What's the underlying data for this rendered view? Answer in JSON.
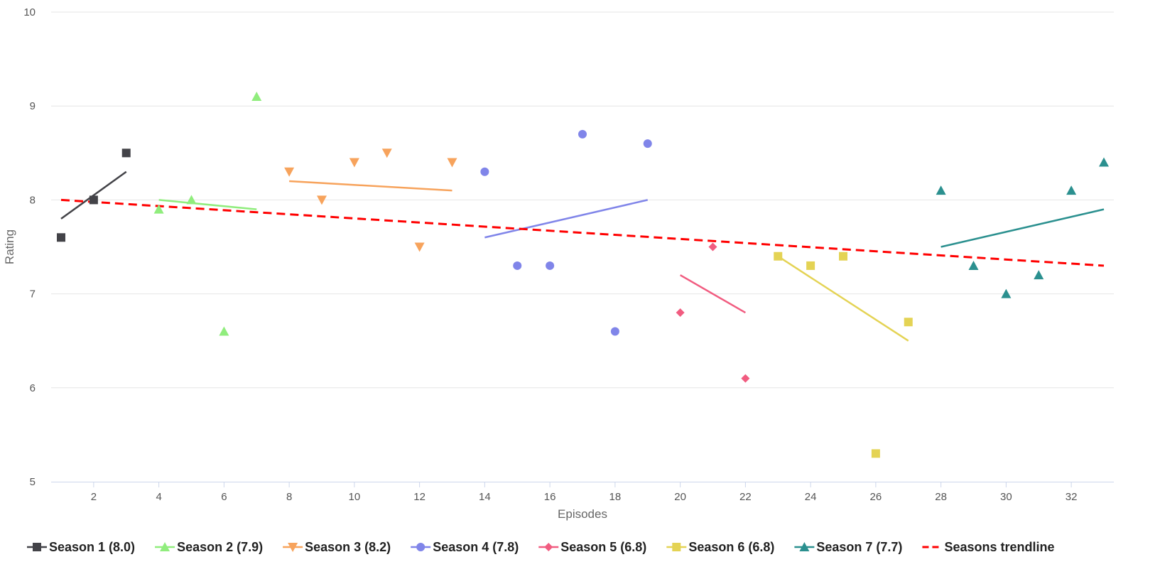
{
  "chart_data": {
    "type": "scatter",
    "xlabel": "Episodes",
    "ylabel": "Rating",
    "xlim": [
      0.5,
      33
    ],
    "ylim": [
      5,
      10
    ],
    "xticks": [
      2,
      4,
      6,
      8,
      10,
      12,
      14,
      16,
      18,
      20,
      22,
      24,
      26,
      28,
      30,
      32
    ],
    "yticks": [
      5,
      6,
      7,
      8,
      9,
      10
    ],
    "grid": "horizontal",
    "legend_position": "bottom",
    "series": [
      {
        "name": "Season 1 (8.0)",
        "color": "#434348",
        "marker": "square",
        "points": [
          [
            1,
            7.6
          ],
          [
            2,
            8.0
          ],
          [
            3,
            8.5
          ]
        ],
        "trend": [
          [
            1,
            7.8
          ],
          [
            3,
            8.3
          ]
        ]
      },
      {
        "name": "Season 2 (7.9)",
        "color": "#90ed7d",
        "marker": "triangle",
        "points": [
          [
            4,
            7.9
          ],
          [
            5,
            8.0
          ],
          [
            6,
            6.6
          ],
          [
            7,
            9.1
          ]
        ],
        "trend": [
          [
            4,
            8.0
          ],
          [
            7,
            7.9
          ]
        ]
      },
      {
        "name": "Season 3 (8.2)",
        "color": "#f7a35c",
        "marker": "triangle-down",
        "points": [
          [
            8,
            8.3
          ],
          [
            9,
            8.0
          ],
          [
            10,
            8.4
          ],
          [
            11,
            8.5
          ],
          [
            12,
            7.5
          ],
          [
            13,
            8.4
          ]
        ],
        "trend": [
          [
            8,
            8.2
          ],
          [
            13,
            8.1
          ]
        ]
      },
      {
        "name": "Season 4 (7.8)",
        "color": "#8085e9",
        "marker": "circle",
        "points": [
          [
            14,
            8.3
          ],
          [
            15,
            7.3
          ],
          [
            16,
            7.3
          ],
          [
            17,
            8.7
          ],
          [
            18,
            6.6
          ],
          [
            19,
            8.6
          ]
        ],
        "trend": [
          [
            14,
            7.6
          ],
          [
            19,
            8.0
          ]
        ]
      },
      {
        "name": "Season 5 (6.8)",
        "color": "#f15c80",
        "marker": "diamond",
        "points": [
          [
            20,
            6.8
          ],
          [
            21,
            7.5
          ],
          [
            22,
            6.1
          ]
        ],
        "trend": [
          [
            20,
            7.2
          ],
          [
            22,
            6.8
          ]
        ]
      },
      {
        "name": "Season 6 (6.8)",
        "color": "#e4d354",
        "marker": "square",
        "points": [
          [
            23,
            7.4
          ],
          [
            24,
            7.3
          ],
          [
            25,
            7.4
          ],
          [
            26,
            5.3
          ],
          [
            27,
            6.7
          ]
        ],
        "trend": [
          [
            23,
            7.4
          ],
          [
            27,
            6.5
          ]
        ]
      },
      {
        "name": "Season 7 (7.7)",
        "color": "#2b908f",
        "marker": "triangle",
        "points": [
          [
            28,
            8.1
          ],
          [
            29,
            7.3
          ],
          [
            30,
            7.0
          ],
          [
            31,
            7.2
          ],
          [
            32,
            8.1
          ],
          [
            33,
            8.4
          ]
        ],
        "trend": [
          [
            28,
            7.5
          ],
          [
            33,
            7.9
          ]
        ]
      }
    ],
    "overall_trend": {
      "name": "Seasons trendline",
      "color": "#ff0000",
      "dash": "dashed",
      "points": [
        [
          1,
          8.0
        ],
        [
          33,
          7.3
        ]
      ]
    }
  }
}
